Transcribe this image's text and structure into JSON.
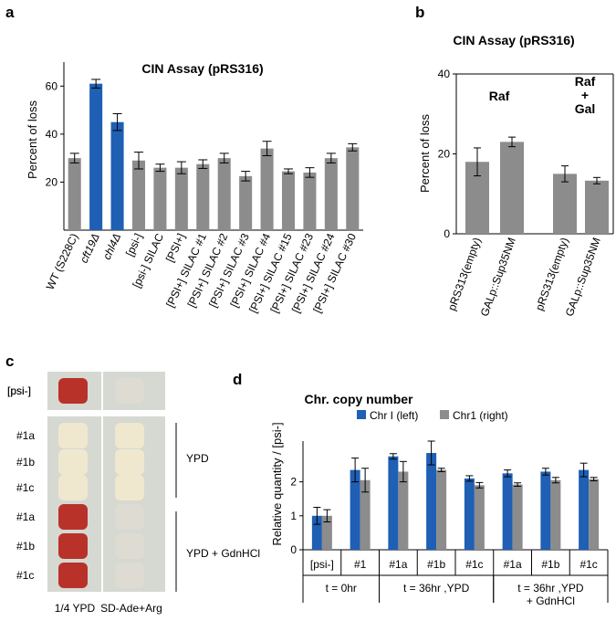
{
  "panels": {
    "a": "a",
    "b": "b",
    "c": "c",
    "d": "d"
  },
  "colors": {
    "grey": "#8c8c8c",
    "blue": "#1f5fb4",
    "axis": "#000000"
  },
  "chart_data": [
    {
      "panel": "a",
      "type": "bar",
      "title": "CIN Assay (pRS316)",
      "xlabel": "",
      "ylabel": "Percent of loss",
      "ylim": [
        0,
        70
      ],
      "yticks": [
        20,
        40,
        60
      ],
      "categories": [
        "WT (S228C)",
        "cft19Δ",
        "chl4Δ",
        "[psi-]",
        "[psi-] SILAC",
        "[PSI+]",
        "[PSI+] SILAC #1",
        "[PSI+] SILAC #2",
        "[PSI+] SILAC #3",
        "[PSI+] SILAC #4",
        "[PSI+] SILAC #15",
        "[PSI+] SILAC #23",
        "[PSI+] SILAC #24",
        "[PSI+] SILAC #30"
      ],
      "italic_categories": [
        1,
        2
      ],
      "values": [
        30,
        61,
        45,
        29,
        26,
        26,
        27.5,
        30,
        22.5,
        34,
        24.5,
        24,
        30,
        34.5
      ],
      "errors": [
        2,
        1.8,
        3.5,
        3.5,
        1.5,
        2.5,
        1.8,
        2,
        2,
        3,
        1,
        2,
        2,
        1.5
      ],
      "highlight": [
        1,
        2
      ]
    },
    {
      "panel": "b",
      "type": "bar",
      "title": "CIN Assay (pRS316)",
      "xlabel": "",
      "ylabel": "Percent of loss",
      "ylim": [
        0,
        40
      ],
      "yticks": [
        0,
        20,
        40
      ],
      "categories": [
        "pRS313(empty)",
        "GALp::Sup35NM",
        "pRS313(empty)",
        "GALp::Sup35NM"
      ],
      "values": [
        18,
        23,
        15,
        13.3
      ],
      "errors": [
        3.5,
        1.2,
        2,
        0.8
      ],
      "annotations": [
        {
          "lines": [
            "Raf"
          ]
        },
        {
          "lines": [
            "Raf",
            "+",
            "Gal"
          ]
        }
      ]
    },
    {
      "panel": "d",
      "type": "bar",
      "title": "Chr. copy number",
      "xlabel": "",
      "ylabel": "Relative quantity / [psi-]",
      "ylim": [
        0,
        3.2
      ],
      "yticks": [
        0,
        1,
        2
      ],
      "legend_position": "top-right",
      "categories": [
        "[psi-]",
        "#1",
        "#1a",
        "#1b",
        "#1c",
        "#1a",
        "#1b",
        "#1c"
      ],
      "groups": [
        {
          "lines": [
            "t = 0hr"
          ],
          "span": [
            0,
            1
          ]
        },
        {
          "lines": [
            "t = 36hr ,YPD"
          ],
          "span": [
            2,
            4
          ]
        },
        {
          "lines": [
            "t = 36hr ,YPD",
            "+ GdnHCl"
          ],
          "span": [
            5,
            7
          ]
        }
      ],
      "series": [
        {
          "name": "Chr I (left)",
          "color": "#1f5fb4",
          "values": [
            1.0,
            2.35,
            2.75,
            2.85,
            2.1,
            2.25,
            2.3,
            2.35
          ],
          "errors": [
            0.25,
            0.35,
            0.08,
            0.35,
            0.08,
            0.1,
            0.1,
            0.2
          ]
        },
        {
          "name": "Chr1 (right)",
          "color": "#8c8c8c",
          "values": [
            1.0,
            2.05,
            2.3,
            2.35,
            1.9,
            1.92,
            2.05,
            2.08
          ],
          "errors": [
            0.18,
            0.35,
            0.3,
            0.05,
            0.08,
            0.05,
            0.08,
            0.05
          ]
        }
      ]
    }
  ],
  "panel_c": {
    "column_labels": [
      "1/4 YPD",
      "SD-Ade+Arg"
    ],
    "top_row_label": "[psi-]",
    "row_labels": [
      "#1a",
      "#1b",
      "#1c",
      "#1a",
      "#1b",
      "#1c"
    ],
    "group_labels": [
      "YPD",
      "YPD + GdnHCl"
    ],
    "left_colonies": [
      "red",
      "white",
      "white",
      "white",
      "red",
      "red",
      "red"
    ],
    "right_colonies": [
      "none",
      "white",
      "white",
      "white",
      "none",
      "none",
      "none"
    ]
  }
}
